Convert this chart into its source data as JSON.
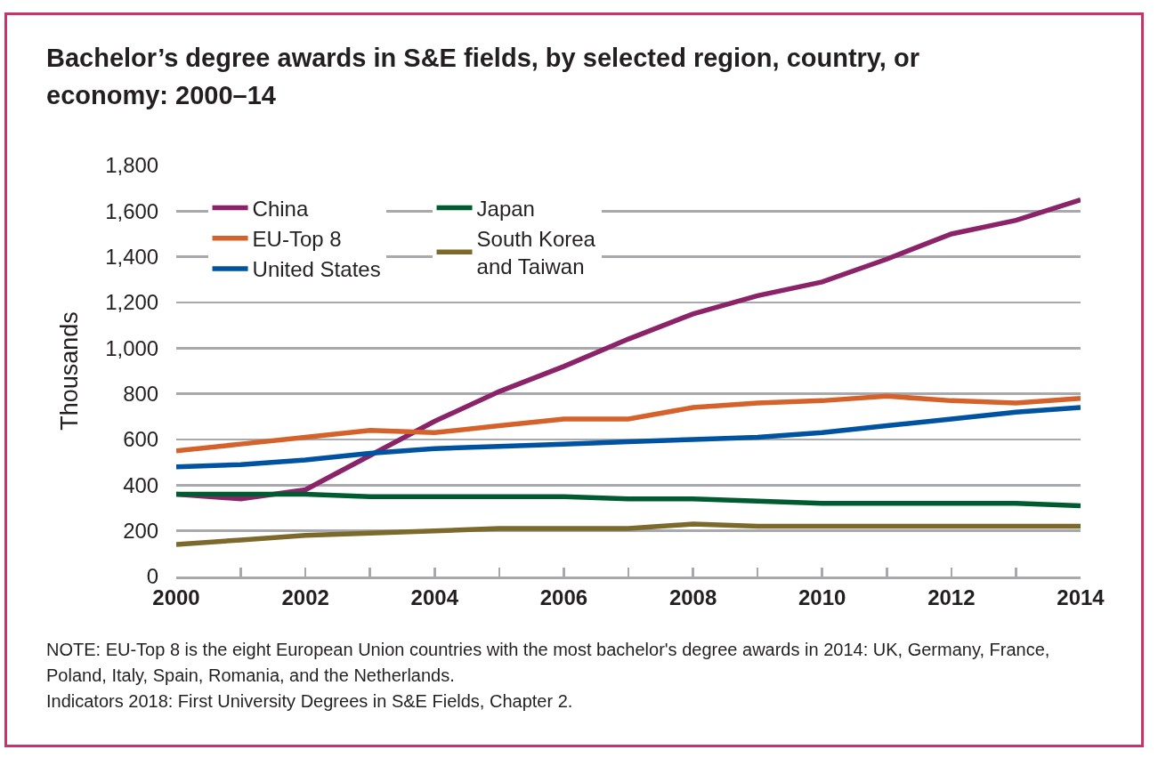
{
  "chart_data": {
    "type": "line",
    "title": "Bachelor’s degree awards in S&E fields, by selected region, country, or economy: 2000–14",
    "ylabel": "Thousands",
    "x": [
      2000,
      2001,
      2002,
      2003,
      2004,
      2005,
      2006,
      2007,
      2008,
      2009,
      2010,
      2011,
      2012,
      2013,
      2014
    ],
    "series": [
      {
        "name": "China",
        "color": "#8a2368",
        "values": [
          360,
          340,
          380,
          530,
          680,
          810,
          920,
          1040,
          1150,
          1230,
          1290,
          1390,
          1500,
          1560,
          1650
        ]
      },
      {
        "name": "EU-Top 8",
        "color": "#d5622b",
        "values": [
          550,
          580,
          610,
          640,
          630,
          660,
          690,
          690,
          740,
          760,
          770,
          790,
          770,
          760,
          780
        ]
      },
      {
        "name": "United States",
        "color": "#0053a0",
        "values": [
          480,
          490,
          510,
          540,
          560,
          570,
          580,
          590,
          600,
          610,
          630,
          660,
          690,
          720,
          740
        ]
      },
      {
        "name": "Japan",
        "color": "#005c30",
        "values": [
          360,
          360,
          360,
          350,
          350,
          350,
          350,
          340,
          340,
          330,
          320,
          320,
          320,
          320,
          310
        ]
      },
      {
        "name": "South Korea and Taiwan",
        "color": "#7b6a2b",
        "values": [
          140,
          160,
          180,
          190,
          200,
          210,
          210,
          210,
          230,
          220,
          220,
          220,
          220,
          220,
          220
        ]
      }
    ],
    "xlim": [
      2000,
      2014
    ],
    "xticks": [
      2000,
      {
        "value": 2001,
        "label": null
      },
      2002,
      {
        "value": 2003,
        "label": null
      },
      2004,
      {
        "value": 2005,
        "label": null
      },
      2006,
      {
        "value": 2007,
        "label": null
      },
      2008,
      {
        "value": 2009,
        "label": null
      },
      2010,
      {
        "value": 2011,
        "label": null
      },
      2012,
      {
        "value": 2013,
        "label": null
      },
      2014
    ],
    "ylim": [
      0,
      1800
    ],
    "yticks": [
      0,
      200,
      400,
      600,
      800,
      {
        "value": 1000,
        "label": "1,000"
      },
      {
        "value": 1200,
        "label": "1,200"
      },
      {
        "value": 1400,
        "label": "1,400"
      },
      {
        "value": 1600,
        "label": "1,600"
      },
      {
        "value": 1800,
        "label": "1,800"
      }
    ],
    "grid": "y",
    "legend": "top left",
    "annotations": [
      "NOTE: EU-Top 8 is the eight European Union countries with the most bachelor's degree awards in 2014: UK, Germany, France, Poland, Italy, Spain, Romania, and the Netherlands.",
      "Indicators 2018: First University Degrees in S&E Fields, Chapter 2."
    ]
  }
}
